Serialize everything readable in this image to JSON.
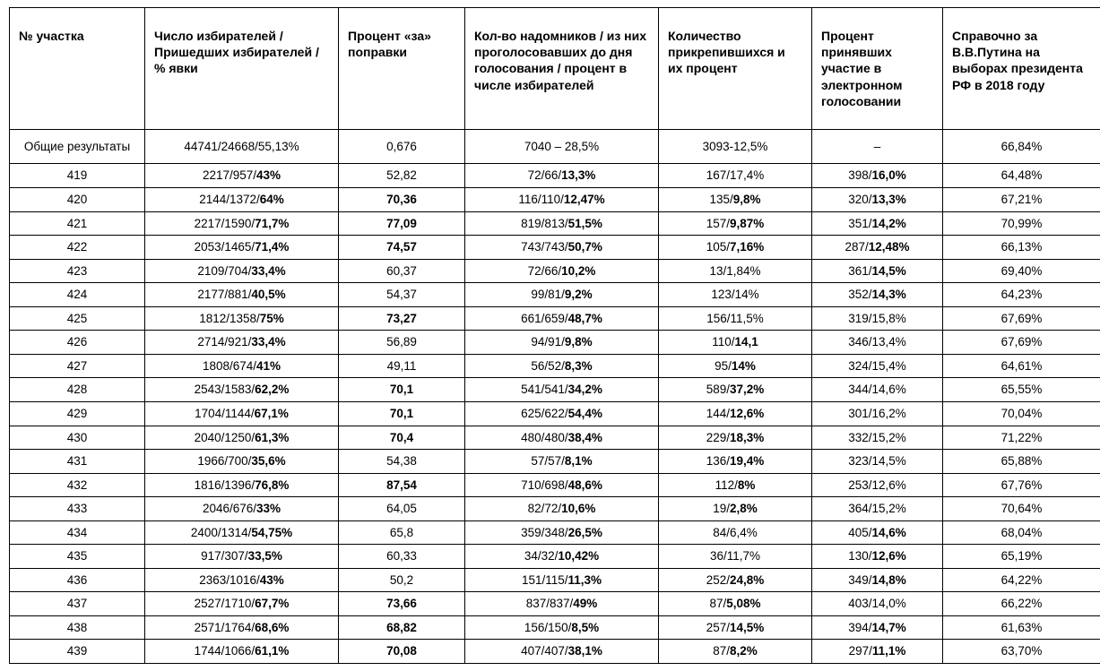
{
  "table": {
    "border_color": "#000000",
    "background_color": "#ffffff",
    "font_family": "Arial",
    "header_fontsize": 14,
    "cell_fontsize": 13.5,
    "columns": [
      {
        "key": "num",
        "label": "№ участка"
      },
      {
        "key": "voters",
        "label": "Число избирателей / Пришедших избирателей / % явки"
      },
      {
        "key": "yes",
        "label": "Процент «за» поправки"
      },
      {
        "key": "home",
        "label": "Кол-во надомников / из них проголосовавших до дня голосования / процент в числе избирателей"
      },
      {
        "key": "attach",
        "label": "Количество прикрепившихся и их процент"
      },
      {
        "key": "elec",
        "label": "Процент принявших участие в электронном голосовании"
      },
      {
        "key": "putin",
        "label": "Справочно за В.В.Путина на выборах президента РФ в 2018 году"
      }
    ],
    "totals": {
      "num": "Общие результаты",
      "voters": "44741/24668/55,13%",
      "yes": "0,676",
      "home": "7040 – 28,5%",
      "attach": "3093-12,5%",
      "elec": "–",
      "putin": "66,84%"
    },
    "rows": [
      {
        "num": "419",
        "vp": "2217/957/",
        "vb": "43%",
        "yes": "52,82",
        "yes_b": false,
        "hp": "72/66/",
        "hb": "13,3%",
        "ap": "167/17,4%",
        "ab": "",
        "ep": "398/",
        "eb": "16,0%",
        "putin": "64,48%"
      },
      {
        "num": "420",
        "vp": "2144/1372/",
        "vb": "64%",
        "yes": "70,36",
        "yes_b": true,
        "hp": "116/110/",
        "hb": "12,47%",
        "ap": "135/",
        "ab": "9,8%",
        "ep": "320/",
        "eb": "13,3%",
        "putin": "67,21%"
      },
      {
        "num": "421",
        "vp": "2217/1590/",
        "vb": "71,7%",
        "yes": "77,09",
        "yes_b": true,
        "hp": "819/813/",
        "hb": "51,5%",
        "ap": "157/",
        "ab": "9,87%",
        "ep": "351/",
        "eb": "14,2%",
        "putin": "70,99%"
      },
      {
        "num": "422",
        "vp": "2053/1465/",
        "vb": "71,4%",
        "yes": "74,57",
        "yes_b": true,
        "hp": "743/743/",
        "hb": "50,7%",
        "ap": "105/",
        "ab": "7,16%",
        "ep": "287/",
        "eb": "12,48%",
        "putin": "66,13%"
      },
      {
        "num": "423",
        "vp": "2109/704/",
        "vb": "33,4%",
        "yes": "60,37",
        "yes_b": false,
        "hp": "72/66/",
        "hb": "10,2%",
        "ap": "13/1,84%",
        "ab": "",
        "ep": "361/",
        "eb": "14,5%",
        "putin": "69,40%"
      },
      {
        "num": "424",
        "vp": "2177/881/",
        "vb": "40,5%",
        "yes": "54,37",
        "yes_b": false,
        "hp": "99/81/",
        "hb": "9,2%",
        "ap": "123/14%",
        "ab": "",
        "ep": "352/",
        "eb": "14,3%",
        "putin": "64,23%"
      },
      {
        "num": "425",
        "vp": "1812/1358/",
        "vb": "75%",
        "yes": "73,27",
        "yes_b": true,
        "hp": "661/659/",
        "hb": "48,7%",
        "ap": "156/11,5%",
        "ab": "",
        "ep": "319/15,8%",
        "eb": "",
        "putin": "67,69%"
      },
      {
        "num": "426",
        "vp": "2714/921/",
        "vb": "33,4%",
        "yes": "56,89",
        "yes_b": false,
        "hp": "94/91/",
        "hb": "9,8%",
        "ap": "110/",
        "ab": "14,1",
        "ep": "346/13,4%",
        "eb": "",
        "putin": "67,69%"
      },
      {
        "num": "427",
        "vp": "1808/674/",
        "vb": "41%",
        "yes": "49,11",
        "yes_b": false,
        "hp": "56/52/",
        "hb": "8,3%",
        "ap": "95/",
        "ab": "14%",
        "ep": "324/15,4%",
        "eb": "",
        "putin": "64,61%"
      },
      {
        "num": "428",
        "vp": "2543/1583/",
        "vb": "62,2%",
        "yes": "70,1",
        "yes_b": true,
        "hp": "541/541/",
        "hb": "34,2%",
        "ap": "589/",
        "ab": "37,2%",
        "ep": "344/14,6%",
        "eb": "",
        "putin": "65,55%"
      },
      {
        "num": "429",
        "vp": "1704/1144/",
        "vb": "67,1%",
        "yes": "70,1",
        "yes_b": true,
        "hp": "625/622/",
        "hb": "54,4%",
        "ap": "144/",
        "ab": "12,6%",
        "ep": "301/16,2%",
        "eb": "",
        "putin": "70,04%"
      },
      {
        "num": "430",
        "vp": "2040/1250/",
        "vb": "61,3%",
        "yes": "70,4",
        "yes_b": true,
        "hp": "480/480/",
        "hb": "38,4%",
        "ap": "229/",
        "ab": "18,3%",
        "ep": "332/15,2%",
        "eb": "",
        "putin": "71,22%"
      },
      {
        "num": "431",
        "vp": "1966/700/",
        "vb": "35,6%",
        "yes": "54,38",
        "yes_b": false,
        "hp": "57/57/",
        "hb": "8,1%",
        "ap": "136/",
        "ab": "19,4%",
        "ep": "323/14,5%",
        "eb": "",
        "putin": "65,88%"
      },
      {
        "num": "432",
        "vp": "1816/1396/",
        "vb": "76,8%",
        "yes": "87,54",
        "yes_b": true,
        "hp": "710/698/",
        "hb": "48,6%",
        "ap": "112/",
        "ab": "8%",
        "ep": "253/12,6%",
        "eb": "",
        "putin": "67,76%"
      },
      {
        "num": "433",
        "vp": "2046/676/",
        "vb": "33%",
        "yes": "64,05",
        "yes_b": false,
        "hp": "82/72/",
        "hb": "10,6%",
        "ap": "19/",
        "ab": "2,8%",
        "ep": "364/15,2%",
        "eb": "",
        "putin": "70,64%"
      },
      {
        "num": "434",
        "vp": "2400/1314/",
        "vb": "54,75%",
        "yes": "65,8",
        "yes_b": false,
        "hp": "359/348/",
        "hb": "26,5%",
        "ap": "84/6,4%",
        "ab": "",
        "ep": "405/",
        "eb": "14,6%",
        "putin": "68,04%"
      },
      {
        "num": "435",
        "vp": "917/307/",
        "vb": "33,5%",
        "yes": "60,33",
        "yes_b": false,
        "hp": "34/32/",
        "hb": "10,42%",
        "ap": "36/11,7%",
        "ab": "",
        "ep": "130/",
        "eb": "12,6%",
        "putin": "65,19%"
      },
      {
        "num": "436",
        "vp": "2363/1016/",
        "vb": "43%",
        "yes": "50,2",
        "yes_b": false,
        "hp": "151/115/",
        "hb": "11,3%",
        "ap": "252/",
        "ab": "24,8%",
        "ep": "349/",
        "eb": "14,8%",
        "putin": "64,22%"
      },
      {
        "num": "437",
        "vp": "2527/1710/",
        "vb": "67,7%",
        "yes": "73,66",
        "yes_b": true,
        "hp": "837/837/",
        "hb": "49%",
        "ap": "87/",
        "ab": "5,08%",
        "ep": "403/14,0%",
        "eb": "",
        "putin": "66,22%"
      },
      {
        "num": "438",
        "vp": "2571/1764/",
        "vb": "68,6%",
        "yes": "68,82",
        "yes_b": true,
        "hp": "156/150/",
        "hb": "8,5%",
        "ap": "257/",
        "ab": "14,5%",
        "ep": "394/",
        "eb": "14,7%",
        "putin": "61,63%"
      },
      {
        "num": "439",
        "vp": "1744/1066/",
        "vb": "61,1%",
        "yes": "70,08",
        "yes_b": true,
        "hp": "407/407/",
        "hb": "38,1%",
        "ap": "87/",
        "ab": "8,2%",
        "ep": "297/",
        "eb": "11,1%",
        "putin": "63,70%"
      }
    ]
  }
}
